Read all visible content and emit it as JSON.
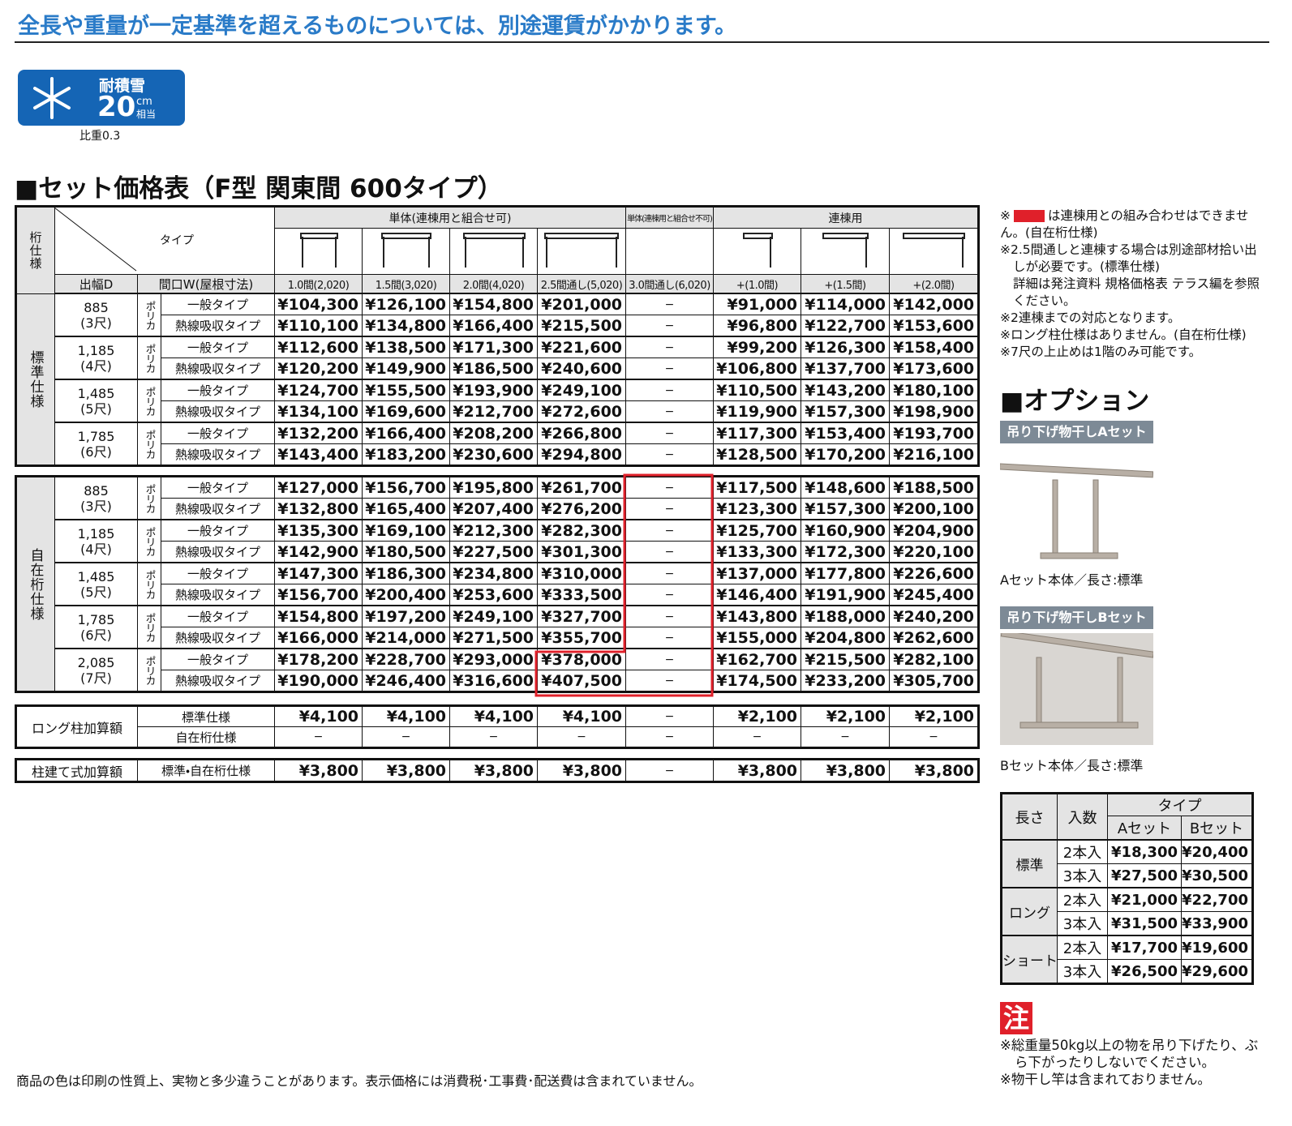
{
  "header": {
    "title": "全長や重量が一定基準を超えるものについては、別途運賃がかかります。"
  },
  "badge": {
    "label": "耐積雪",
    "value": "20",
    "unit": "cm",
    "suffix": "相当",
    "note": "比重0.3"
  },
  "section_title": "■セット価格表（F型 関東間 600タイプ）",
  "price_table": {
    "corner": {
      "spec": "桁仕様",
      "type": "タイプ",
      "depth": "出幅D",
      "width": "間口W(屋根寸法)"
    },
    "groups": [
      "単体(連棟用と組合せ可)",
      "単体(連棟用と組合せ不可)",
      "連棟用"
    ],
    "columns": [
      "1.0間(2,020)",
      "1.5間(3,020)",
      "2.0間(4,020)",
      "2.5間通し(5,020)",
      "3.0間通し(6,020)",
      "+(1.0間)",
      "+(1.5間)",
      "+(2.0間)"
    ],
    "sections": [
      {
        "name": "標準仕様",
        "sizes": [
          {
            "depth": "885",
            "shaku": "(3尺)",
            "material": "ポリカ",
            "rows": [
              {
                "type": "一般タイプ",
                "prices": [
                  "¥104,300",
                  "¥126,100",
                  "¥154,800",
                  "¥201,000",
                  "−",
                  "¥91,000",
                  "¥114,000",
                  "¥142,000"
                ]
              },
              {
                "type": "熱線吸収タイプ",
                "prices": [
                  "¥110,100",
                  "¥134,800",
                  "¥166,400",
                  "¥215,500",
                  "−",
                  "¥96,800",
                  "¥122,700",
                  "¥153,600"
                ]
              }
            ]
          },
          {
            "depth": "1,185",
            "shaku": "(4尺)",
            "material": "ポリカ",
            "rows": [
              {
                "type": "一般タイプ",
                "prices": [
                  "¥112,600",
                  "¥138,500",
                  "¥171,300",
                  "¥221,600",
                  "−",
                  "¥99,200",
                  "¥126,300",
                  "¥158,400"
                ]
              },
              {
                "type": "熱線吸収タイプ",
                "prices": [
                  "¥120,200",
                  "¥149,900",
                  "¥186,500",
                  "¥240,600",
                  "−",
                  "¥106,800",
                  "¥137,700",
                  "¥173,600"
                ]
              }
            ]
          },
          {
            "depth": "1,485",
            "shaku": "(5尺)",
            "material": "ポリカ",
            "rows": [
              {
                "type": "一般タイプ",
                "prices": [
                  "¥124,700",
                  "¥155,500",
                  "¥193,900",
                  "¥249,100",
                  "−",
                  "¥110,500",
                  "¥143,200",
                  "¥180,100"
                ]
              },
              {
                "type": "熱線吸収タイプ",
                "prices": [
                  "¥134,100",
                  "¥169,600",
                  "¥212,700",
                  "¥272,600",
                  "−",
                  "¥119,900",
                  "¥157,300",
                  "¥198,900"
                ]
              }
            ]
          },
          {
            "depth": "1,785",
            "shaku": "(6尺)",
            "material": "ポリカ",
            "rows": [
              {
                "type": "一般タイプ",
                "prices": [
                  "¥132,200",
                  "¥166,400",
                  "¥208,200",
                  "¥266,800",
                  "−",
                  "¥117,300",
                  "¥153,400",
                  "¥193,700"
                ]
              },
              {
                "type": "熱線吸収タイプ",
                "prices": [
                  "¥143,400",
                  "¥183,200",
                  "¥230,600",
                  "¥294,800",
                  "−",
                  "¥128,500",
                  "¥170,200",
                  "¥216,100"
                ]
              }
            ]
          }
        ]
      },
      {
        "name": "自在桁仕様",
        "sizes": [
          {
            "depth": "885",
            "shaku": "(3尺)",
            "material": "ポリカ",
            "rows": [
              {
                "type": "一般タイプ",
                "prices": [
                  "¥127,000",
                  "¥156,700",
                  "¥195,800",
                  "¥261,700",
                  "−",
                  "¥117,500",
                  "¥148,600",
                  "¥188,500"
                ]
              },
              {
                "type": "熱線吸収タイプ",
                "prices": [
                  "¥132,800",
                  "¥165,400",
                  "¥207,400",
                  "¥276,200",
                  "−",
                  "¥123,300",
                  "¥157,300",
                  "¥200,100"
                ]
              }
            ]
          },
          {
            "depth": "1,185",
            "shaku": "(4尺)",
            "material": "ポリカ",
            "rows": [
              {
                "type": "一般タイプ",
                "prices": [
                  "¥135,300",
                  "¥169,100",
                  "¥212,300",
                  "¥282,300",
                  "−",
                  "¥125,700",
                  "¥160,900",
                  "¥204,900"
                ]
              },
              {
                "type": "熱線吸収タイプ",
                "prices": [
                  "¥142,900",
                  "¥180,500",
                  "¥227,500",
                  "¥301,300",
                  "−",
                  "¥133,300",
                  "¥172,300",
                  "¥220,100"
                ]
              }
            ]
          },
          {
            "depth": "1,485",
            "shaku": "(5尺)",
            "material": "ポリカ",
            "rows": [
              {
                "type": "一般タイプ",
                "prices": [
                  "¥147,300",
                  "¥186,300",
                  "¥234,800",
                  "¥310,000",
                  "−",
                  "¥137,000",
                  "¥177,800",
                  "¥226,600"
                ]
              },
              {
                "type": "熱線吸収タイプ",
                "prices": [
                  "¥156,700",
                  "¥200,400",
                  "¥253,600",
                  "¥333,500",
                  "−",
                  "¥146,400",
                  "¥191,900",
                  "¥245,400"
                ]
              }
            ]
          },
          {
            "depth": "1,785",
            "shaku": "(6尺)",
            "material": "ポリカ",
            "rows": [
              {
                "type": "一般タイプ",
                "prices": [
                  "¥154,800",
                  "¥197,200",
                  "¥249,100",
                  "¥327,700",
                  "−",
                  "¥143,800",
                  "¥188,000",
                  "¥240,200"
                ]
              },
              {
                "type": "熱線吸収タイプ",
                "prices": [
                  "¥166,000",
                  "¥214,000",
                  "¥271,500",
                  "¥355,700",
                  "−",
                  "¥155,000",
                  "¥204,800",
                  "¥262,600"
                ]
              }
            ]
          },
          {
            "depth": "2,085",
            "shaku": "(7尺)",
            "material": "ポリカ",
            "rows": [
              {
                "type": "一般タイプ",
                "prices": [
                  "¥178,200",
                  "¥228,700",
                  "¥293,000",
                  "¥378,000",
                  "−",
                  "¥162,700",
                  "¥215,500",
                  "¥282,100"
                ]
              },
              {
                "type": "熱線吸収タイプ",
                "prices": [
                  "¥190,000",
                  "¥246,400",
                  "¥316,600",
                  "¥407,500",
                  "−",
                  "¥174,500",
                  "¥233,200",
                  "¥305,700"
                ]
              }
            ]
          }
        ]
      }
    ]
  },
  "long_pillar": {
    "label": "ロング柱加算額",
    "rows": [
      {
        "spec": "標準仕様",
        "prices": [
          "¥4,100",
          "¥4,100",
          "¥4,100",
          "¥4,100",
          "−",
          "¥2,100",
          "¥2,100",
          "¥2,100"
        ]
      },
      {
        "spec": "自在桁仕様",
        "prices": [
          "−",
          "−",
          "−",
          "−",
          "−",
          "−",
          "−",
          "−"
        ]
      }
    ]
  },
  "post_type": {
    "label": "柱建て式加算額",
    "spec": "標準・自在桁仕様",
    "prices": [
      "¥3,800",
      "¥3,800",
      "¥3,800",
      "¥3,800",
      "−",
      "¥3,800",
      "¥3,800",
      "¥3,800"
    ]
  },
  "legend_note": {
    "mark": "※",
    "text": "は連棟用との組み合わせはできません。(自在桁仕様)"
  },
  "notes": [
    "※2.5間通しと連棟する場合は別途部材拾い出しが必要です。(標準仕様)",
    "詳細は発注資料 規格価格表 テラス編を参照ください。",
    "※2連棟までの対応となります。",
    "※ロング柱仕様はありません。(自在桁仕様)",
    "※7尺の上止めは1階のみ可能です。"
  ],
  "options": {
    "title": "■オプション",
    "items": [
      {
        "label": "吊り下げ物干しAセット",
        "caption": "Aセット本体／長さ:標準"
      },
      {
        "label": "吊り下げ物干しBセット",
        "caption": "Bセット本体／長さ:標準"
      }
    ],
    "table": {
      "headers": {
        "length": "長さ",
        "count": "入数",
        "type": "タイプ",
        "a": "Aセット",
        "b": "Bセット"
      },
      "rows": [
        {
          "length": "標準",
          "entries": [
            {
              "count": "2本入",
              "a": "¥18,300",
              "b": "¥20,400"
            },
            {
              "count": "3本入",
              "a": "¥27,500",
              "b": "¥30,500"
            }
          ]
        },
        {
          "length": "ロング",
          "entries": [
            {
              "count": "2本入",
              "a": "¥21,000",
              "b": "¥22,700"
            },
            {
              "count": "3本入",
              "a": "¥31,500",
              "b": "¥33,900"
            }
          ]
        },
        {
          "length": "ショート",
          "entries": [
            {
              "count": "2本入",
              "a": "¥17,700",
              "b": "¥19,600"
            },
            {
              "count": "3本入",
              "a": "¥26,500",
              "b": "¥29,600"
            }
          ]
        }
      ]
    }
  },
  "caution": {
    "mark": "注",
    "notes": [
      "※総重量50kg以上の物を吊り下げたり、ぶら下がったりしないでください。",
      "※物干し竿は含まれておりません。"
    ]
  },
  "footer": "商品の色は印刷の性質上、実物と多少違うことがあります。表示価格には消費税･工事費･配送費は含まれていません。"
}
